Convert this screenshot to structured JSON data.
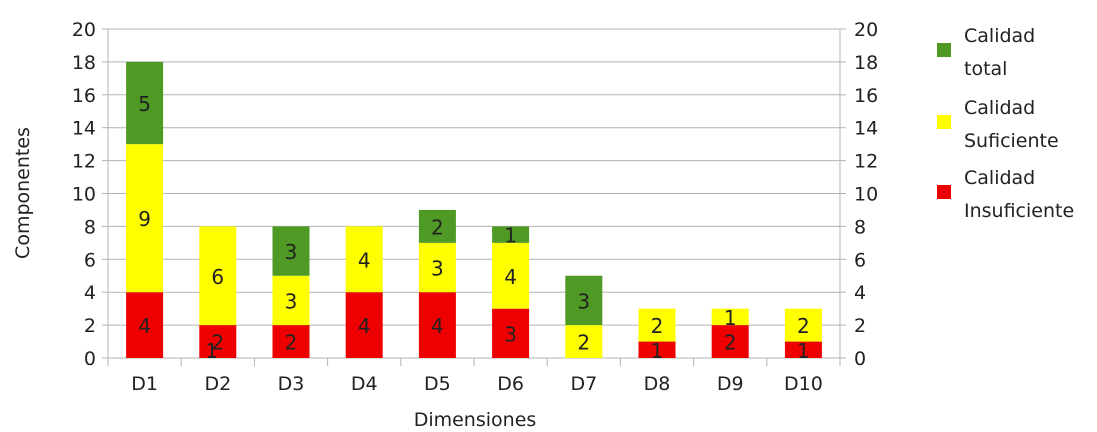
{
  "chart_data": {
    "type": "bar",
    "stacked": true,
    "categories": [
      "D1",
      "D2",
      "D3",
      "D4",
      "D5",
      "D6",
      "D7",
      "D8",
      "D9",
      "D10"
    ],
    "series": [
      {
        "name": "Calidad Insuficiente",
        "color": "#ee0000",
        "values": [
          4,
          2,
          2,
          4,
          4,
          3,
          0,
          1,
          2,
          1
        ]
      },
      {
        "name": "Calidad Suficiente",
        "color": "#ffff00",
        "values": [
          9,
          6,
          3,
          4,
          3,
          4,
          2,
          2,
          1,
          2
        ]
      },
      {
        "name": "Calidad total",
        "color": "#4f9a24",
        "values": [
          5,
          0,
          3,
          0,
          2,
          1,
          3,
          0,
          0,
          0
        ]
      }
    ],
    "extra_labels": [
      {
        "category": "D2",
        "value": 1,
        "text": "1"
      }
    ],
    "xlabel": "Dimensiones",
    "ylabel": "Componentes",
    "ylim": [
      0,
      20
    ],
    "yticks": [
      0,
      2,
      4,
      6,
      8,
      10,
      12,
      14,
      16,
      18,
      20
    ],
    "secondary_y_axis": true,
    "legend": {
      "placement": "right",
      "entries": [
        {
          "lines": [
            "Calidad",
            "total"
          ],
          "color": "#4f9a24"
        },
        {
          "lines": [
            "Calidad",
            "Suficiente"
          ],
          "color": "#ffff00"
        },
        {
          "lines": [
            "Calidad",
            "Insuficiente"
          ],
          "color": "#ee0000"
        }
      ]
    }
  }
}
